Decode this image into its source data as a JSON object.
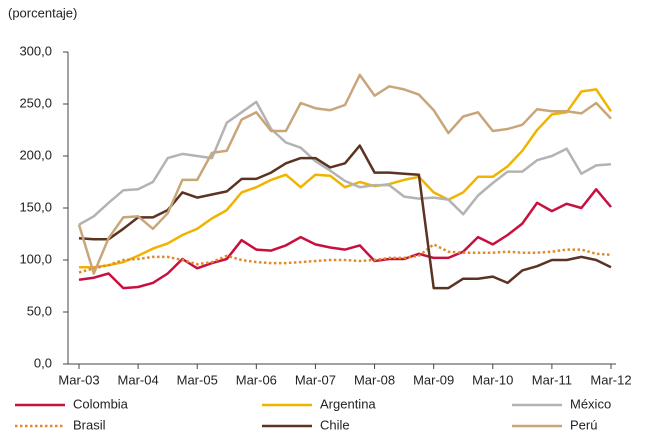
{
  "chart_data": {
    "type": "line",
    "y_label": "(porcentaje)",
    "categories": [
      "Mar-03",
      null,
      null,
      null,
      "Mar-04",
      null,
      null,
      null,
      "Mar-05",
      null,
      null,
      null,
      "Mar-06",
      null,
      null,
      null,
      "Mar-07",
      null,
      null,
      null,
      "Mar-08",
      null,
      null,
      null,
      "Mar-09",
      null,
      null,
      null,
      "Mar-10",
      null,
      null,
      null,
      "Mar-11",
      null,
      null,
      null,
      "Mar-12"
    ],
    "ylim": [
      0,
      300
    ],
    "yticks": [
      {
        "value": 0,
        "label": "0,0"
      },
      {
        "value": 50,
        "label": "50,0"
      },
      {
        "value": 100,
        "label": "100,0"
      },
      {
        "value": 150,
        "label": "150,0"
      },
      {
        "value": 200,
        "label": "200,0"
      },
      {
        "value": 250,
        "label": "250,0"
      },
      {
        "value": 300,
        "label": "300,0"
      }
    ],
    "legend": "bottom",
    "series": [
      {
        "name": "Colombia",
        "color": "#c8103e",
        "style": "solid",
        "values": [
          81,
          83,
          87,
          73,
          74,
          78,
          87,
          101,
          92,
          97,
          101,
          119,
          110,
          109,
          114,
          122,
          115,
          112,
          110,
          114,
          99,
          101,
          101,
          106,
          102,
          102,
          108,
          122,
          115,
          124,
          135,
          155,
          147,
          154,
          150,
          168,
          151
        ]
      },
      {
        "name": "Argentina",
        "color": "#f0b400",
        "style": "solid",
        "values": [
          93,
          93,
          95,
          98,
          104,
          111,
          116,
          124,
          130,
          140,
          148,
          165,
          170,
          177,
          182,
          170,
          182,
          181,
          170,
          175,
          171,
          173,
          177,
          180,
          165,
          158,
          165,
          180,
          180,
          190,
          205,
          225,
          240,
          242,
          262,
          264,
          243
        ]
      },
      {
        "name": "México",
        "color": "#b3b3b3",
        "style": "solid",
        "values": [
          134,
          142,
          155,
          167,
          168,
          175,
          198,
          202,
          200,
          198,
          232,
          242,
          252,
          226,
          213,
          208,
          195,
          186,
          176,
          170,
          172,
          172,
          161,
          159,
          160,
          158,
          144,
          162,
          174,
          185,
          185,
          196,
          200,
          207,
          183,
          191,
          192
        ]
      },
      {
        "name": "Brasil",
        "color": "#e08a2a",
        "style": "dotted",
        "values": [
          88,
          92,
          95,
          100,
          101,
          103,
          103,
          100,
          96,
          98,
          104,
          100,
          98,
          97,
          97,
          98,
          99,
          100,
          100,
          99,
          100,
          102,
          102,
          104,
          115,
          108,
          107,
          107,
          107,
          108,
          107,
          107,
          108,
          110,
          110,
          106,
          105
        ]
      },
      {
        "name": "Chile",
        "color": "#5c3322",
        "style": "solid",
        "values": [
          121,
          120,
          120,
          130,
          141,
          141,
          148,
          165,
          160,
          163,
          166,
          178,
          178,
          184,
          193,
          198,
          198,
          189,
          193,
          210,
          184,
          184,
          183,
          182,
          73,
          73,
          82,
          82,
          84,
          78,
          90,
          94,
          100,
          100,
          103,
          100,
          93
        ]
      },
      {
        "name": "Perú",
        "color": "#c9a67a",
        "style": "solid",
        "values": [
          134,
          87,
          121,
          141,
          142,
          130,
          145,
          177,
          177,
          203,
          205,
          235,
          242,
          224,
          224,
          251,
          246,
          244,
          249,
          278,
          258,
          267,
          264,
          259,
          244,
          222,
          238,
          242,
          224,
          226,
          230,
          245,
          243,
          243,
          241,
          251,
          236
        ]
      }
    ]
  }
}
